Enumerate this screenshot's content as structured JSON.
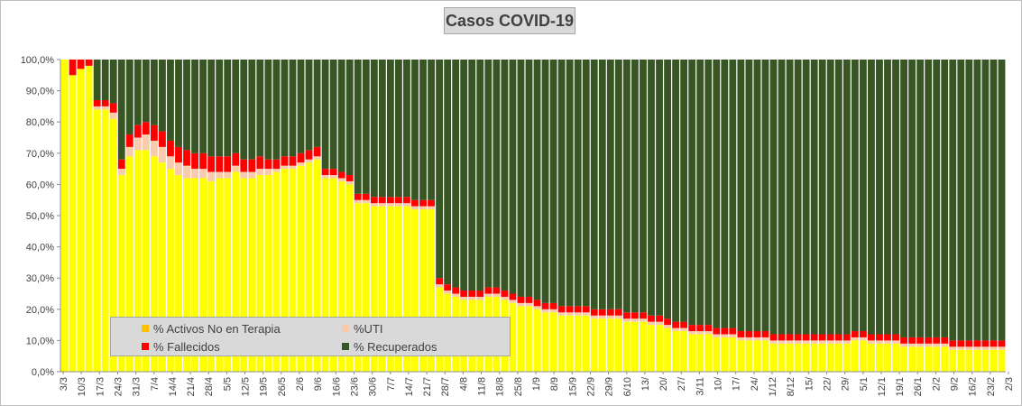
{
  "chart_data": {
    "type": "bar",
    "stacked": "percent",
    "title": "Casos  COVID-19",
    "xlabel": "",
    "ylabel": "",
    "ylim": [
      0,
      100
    ],
    "yticks": [
      "0,0%",
      "10,0%",
      "20,0%",
      "30,0%",
      "40,0%",
      "50,0%",
      "60,0%",
      "70,0%",
      "80,0%",
      "90,0%",
      "100,0%"
    ],
    "grid": false,
    "legend_position": "bottom-left inside plot",
    "date_range": [
      "3/3",
      "3/3"
    ],
    "xticks": [
      "3/3",
      "10/3",
      "17/3",
      "24/3",
      "31/3",
      "7/4",
      "14/4",
      "21/4",
      "28/4",
      "5/5",
      "12/5",
      "19/5",
      "26/5",
      "2/6",
      "9/6",
      "16/6",
      "23/6",
      "30/6",
      "7/7",
      "14/7",
      "21/7",
      "28/7",
      "4/8",
      "11/8",
      "18/8",
      "25/8",
      "1/9",
      "8/9",
      "15/9",
      "22/9",
      "29/9",
      "6/10",
      "13/",
      "20/",
      "27/",
      "3/11",
      "10/",
      "17/",
      "24/",
      "1/12",
      "8/12",
      "15/",
      "22/",
      "29/",
      "5/1",
      "12/1",
      "19/1",
      "26/1",
      "2/2",
      "9/2",
      "16/2",
      "23/2",
      "2/3"
    ],
    "series": [
      {
        "name": "% Activos No en Terapia",
        "color": "#ffff00",
        "legend_color": "#ffc000",
        "values": [
          100,
          95,
          97,
          98,
          84,
          84,
          81,
          63,
          69,
          71,
          71,
          69,
          67,
          65,
          63,
          62,
          62,
          62,
          61,
          62,
          62,
          64,
          62,
          62,
          63,
          63,
          64,
          65,
          65,
          66,
          67,
          68,
          62,
          62,
          61,
          60,
          54,
          54,
          53,
          53,
          53,
          53,
          53,
          52,
          52,
          52,
          27,
          25,
          24,
          23,
          23,
          23,
          24,
          24,
          23,
          22,
          21,
          21,
          20,
          19,
          19,
          18,
          18,
          18,
          18,
          17,
          17,
          17,
          17,
          16,
          16,
          16,
          15,
          15,
          14,
          13,
          13,
          12,
          12,
          12,
          11,
          11,
          11,
          10,
          10,
          10,
          10,
          9,
          9,
          9,
          9,
          9,
          9,
          9,
          9,
          9,
          9,
          10,
          10,
          9,
          9,
          9,
          9,
          8,
          8,
          8,
          8,
          8,
          8,
          7,
          7,
          7,
          7,
          7,
          7,
          7
        ]
      },
      {
        "name": "%UTI",
        "color": "#f8cbad",
        "legend_color": "#f8cbad",
        "values": [
          0,
          0,
          0,
          0,
          1,
          1,
          2,
          2,
          3,
          4,
          5,
          5,
          5,
          4,
          4,
          4,
          3,
          3,
          3,
          2,
          2,
          2,
          2,
          2,
          2,
          2,
          1,
          1,
          1,
          1,
          1,
          1,
          1,
          1,
          1,
          1,
          1,
          1,
          1,
          1,
          1,
          1,
          1,
          1,
          1,
          1,
          1,
          1,
          1,
          1,
          1,
          1,
          1,
          1,
          1,
          1,
          1,
          1,
          1,
          1,
          1,
          1,
          1,
          1,
          1,
          1,
          1,
          1,
          1,
          1,
          1,
          1,
          1,
          1,
          1,
          1,
          1,
          1,
          1,
          1,
          1,
          1,
          1,
          1,
          1,
          1,
          1,
          1,
          1,
          1,
          1,
          1,
          1,
          1,
          1,
          1,
          1,
          1,
          1,
          1,
          1,
          1,
          1,
          1,
          1,
          1,
          1,
          1,
          1,
          1,
          1,
          1,
          1,
          1,
          1,
          1
        ]
      },
      {
        "name": "% Fallecidos",
        "color": "#ff0000",
        "legend_color": "#ff0000",
        "values": [
          0,
          5,
          3,
          2,
          2,
          2,
          3,
          3,
          4,
          4,
          4,
          5,
          5,
          5,
          5,
          5,
          5,
          5,
          5,
          5,
          5,
          4,
          4,
          4,
          4,
          3,
          3,
          3,
          3,
          3,
          3,
          3,
          2,
          2,
          2,
          2,
          2,
          2,
          2,
          2,
          2,
          2,
          2,
          2,
          2,
          2,
          2,
          2,
          2,
          2,
          2,
          2,
          2,
          2,
          2,
          2,
          2,
          2,
          2,
          2,
          2,
          2,
          2,
          2,
          2,
          2,
          2,
          2,
          2,
          2,
          2,
          2,
          2,
          2,
          2,
          2,
          2,
          2,
          2,
          2,
          2,
          2,
          2,
          2,
          2,
          2,
          2,
          2,
          2,
          2,
          2,
          2,
          2,
          2,
          2,
          2,
          2,
          2,
          2,
          2,
          2,
          2,
          2,
          2,
          2,
          2,
          2,
          2,
          2,
          2,
          2,
          2,
          2,
          2,
          2,
          2
        ]
      },
      {
        "name": "% Recuperados",
        "color": "#375623",
        "legend_color": "#375623",
        "values": [
          0,
          0,
          0,
          0,
          13,
          13,
          14,
          32,
          24,
          21,
          20,
          21,
          23,
          26,
          28,
          29,
          30,
          30,
          31,
          31,
          31,
          30,
          32,
          32,
          31,
          32,
          32,
          31,
          31,
          30,
          29,
          28,
          35,
          35,
          36,
          37,
          43,
          43,
          44,
          44,
          44,
          44,
          44,
          45,
          45,
          45,
          70,
          72,
          73,
          74,
          74,
          74,
          73,
          73,
          74,
          75,
          76,
          76,
          77,
          78,
          78,
          79,
          79,
          79,
          79,
          80,
          80,
          80,
          80,
          81,
          81,
          81,
          82,
          82,
          83,
          84,
          84,
          85,
          85,
          85,
          86,
          86,
          86,
          87,
          87,
          87,
          87,
          88,
          88,
          88,
          88,
          88,
          88,
          88,
          88,
          88,
          88,
          87,
          87,
          88,
          88,
          88,
          88,
          89,
          89,
          89,
          89,
          89,
          89,
          90,
          90,
          90,
          90,
          90,
          90,
          90
        ]
      }
    ]
  }
}
